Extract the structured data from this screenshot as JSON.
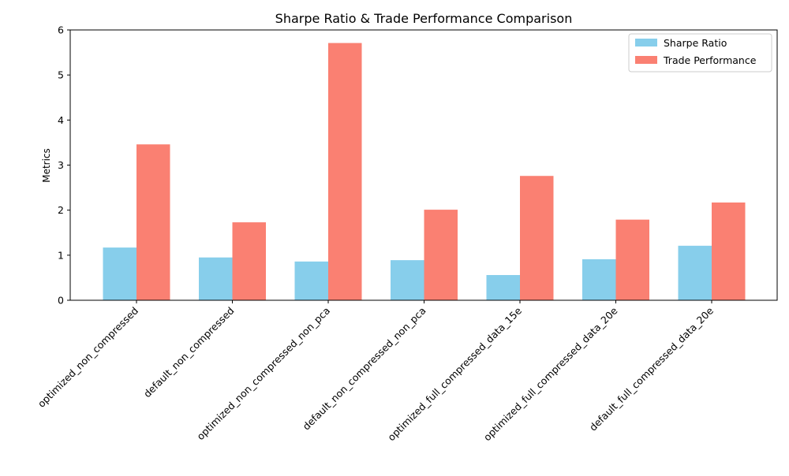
{
  "chart_data": {
    "type": "bar",
    "title": "Sharpe Ratio & Trade Performance Comparison",
    "xlabel": "",
    "ylabel": "Metrics",
    "ylim": [
      0,
      6
    ],
    "yticks": [
      0,
      1,
      2,
      3,
      4,
      5,
      6
    ],
    "grid": false,
    "legend_position": "top-right",
    "categories": [
      "optimized_non_compressed",
      "default_non_compressed",
      "optimized_non_compressed_non_pca",
      "default_non_compressed_non_pca",
      "optimized_full_compressed_data_15e",
      "optimized_full_compressed_data_20e",
      "default_full_compressed_data_20e"
    ],
    "series": [
      {
        "name": "Sharpe Ratio",
        "color": "#87ceeb",
        "values": [
          1.17,
          0.95,
          0.86,
          0.89,
          0.56,
          0.91,
          1.21
        ]
      },
      {
        "name": "Trade Performance",
        "color": "#fa8072",
        "values": [
          3.46,
          1.73,
          5.71,
          2.01,
          2.76,
          1.79,
          2.17
        ]
      }
    ]
  }
}
